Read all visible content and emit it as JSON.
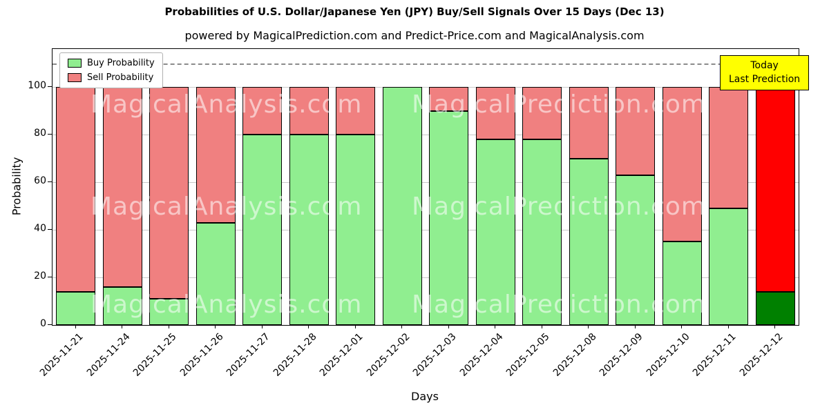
{
  "chart_data": {
    "type": "bar",
    "title": "Probabilities of U.S. Dollar/Japanese Yen (JPY) Buy/Sell Signals Over 15 Days (Dec 13)",
    "subtitle": "powered by MagicalPrediction.com and Predict-Price.com and MagicalAnalysis.com",
    "xlabel": "Days",
    "ylabel": "Probability",
    "ylim": [
      0,
      116
    ],
    "yticks": [
      0,
      20,
      40,
      60,
      80,
      100
    ],
    "dashed_line_y": 110,
    "grid": "horizontal",
    "legend_position": "upper-left",
    "categories": [
      "2025-11-21",
      "2025-11-24",
      "2025-11-25",
      "2025-11-26",
      "2025-11-27",
      "2025-11-28",
      "2025-12-01",
      "2025-12-02",
      "2025-12-03",
      "2025-12-04",
      "2025-12-05",
      "2025-12-08",
      "2025-12-09",
      "2025-12-10",
      "2025-12-11",
      "2025-12-12"
    ],
    "series": [
      {
        "name": "Buy Probability",
        "values": [
          14,
          16,
          11,
          43,
          80,
          80,
          80,
          100,
          90,
          78,
          78,
          70,
          63,
          35,
          49,
          14
        ]
      },
      {
        "name": "Sell Probability",
        "values": [
          86,
          84,
          89,
          57,
          20,
          20,
          20,
          0,
          10,
          22,
          22,
          30,
          37,
          65,
          51,
          96
        ]
      }
    ],
    "colors": {
      "buy": "#90EE90",
      "sell": "#F08080",
      "buy_last": "#008000",
      "sell_last": "#FF0000",
      "grid": "#c8c8c8",
      "dashed": "#8a8a8a",
      "annotation_bg": "#FFFF00"
    },
    "annotation": {
      "line1": "Today",
      "line2": "Last Prediction"
    },
    "watermarks": {
      "left": "MagicalAnalysis.com",
      "right": "MagicalPrediction.com"
    }
  }
}
